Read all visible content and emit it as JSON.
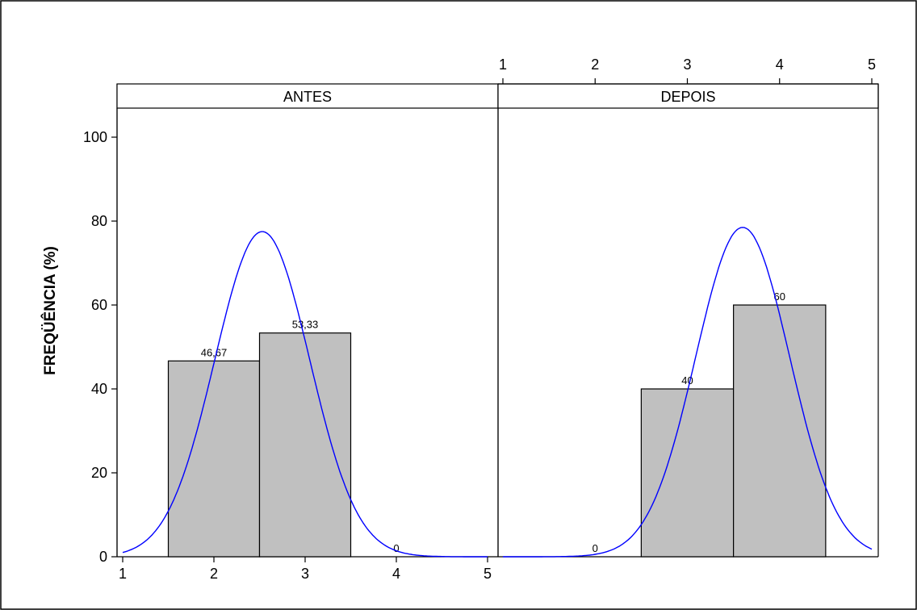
{
  "chart_data": {
    "type": "bar",
    "ylabel": "FREQÜÊNCIA (%)",
    "ylim": [
      0,
      100
    ],
    "yticks": [
      0,
      20,
      40,
      60,
      80,
      100
    ],
    "xlim": [
      1,
      5
    ],
    "xticks": [
      1,
      2,
      3,
      4,
      5
    ],
    "grid": false,
    "legend": "none",
    "colors": {
      "bar": "#c0c0c0",
      "curve": "#0000ff",
      "axis": "#000000"
    },
    "panels": [
      {
        "name": "ANTES",
        "bars": [
          {
            "x": 2,
            "value": 46.67,
            "label": "46,67"
          },
          {
            "x": 3,
            "value": 53.33,
            "label": "53,33"
          },
          {
            "x": 4,
            "value": 0,
            "label": "0"
          }
        ],
        "curve": {
          "mean": 2.53,
          "sd": 0.52,
          "peak": 77.5
        }
      },
      {
        "name": "DEPOIS",
        "bars": [
          {
            "x": 2,
            "value": 0,
            "label": "0"
          },
          {
            "x": 3,
            "value": 40,
            "label": "40"
          },
          {
            "x": 4,
            "value": 60,
            "label": "60"
          }
        ],
        "curve": {
          "mean": 3.6,
          "sd": 0.51,
          "peak": 78.5
        }
      }
    ]
  }
}
